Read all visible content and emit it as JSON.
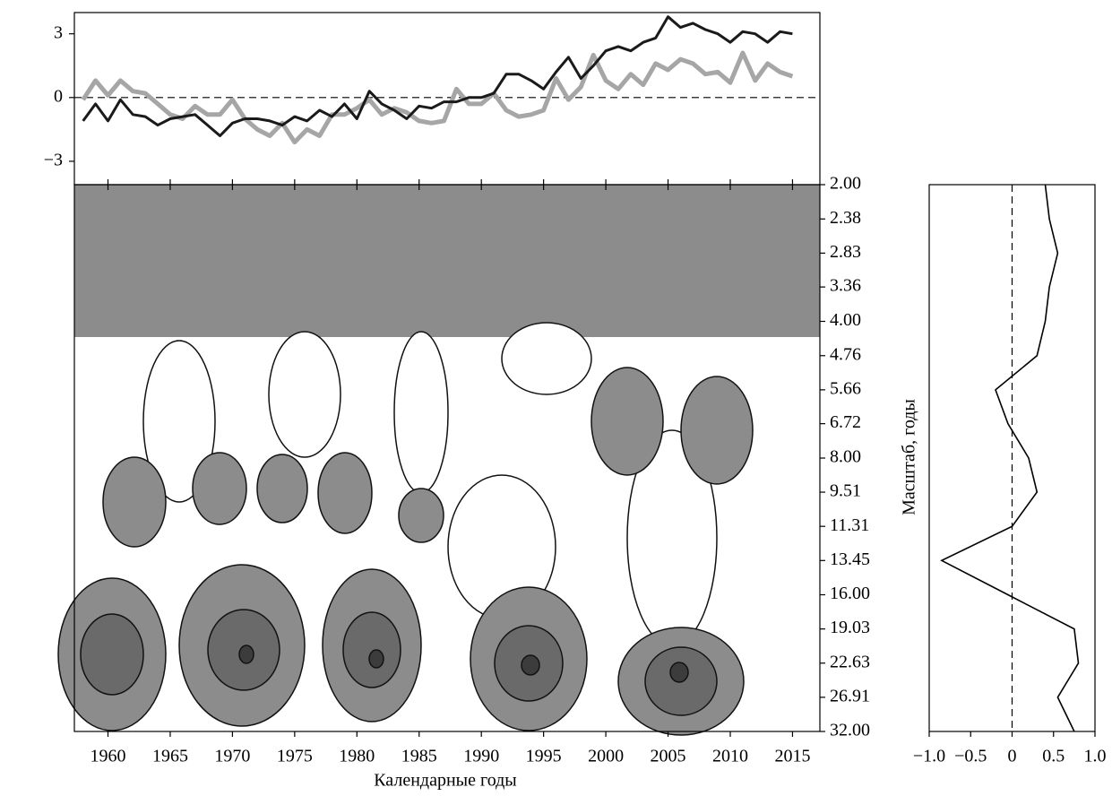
{
  "chart_data": [
    {
      "type": "line",
      "x": [
        1958,
        1959,
        1960,
        1961,
        1962,
        1963,
        1964,
        1965,
        1966,
        1967,
        1968,
        1969,
        1970,
        1971,
        1972,
        1973,
        1974,
        1975,
        1976,
        1977,
        1978,
        1979,
        1980,
        1981,
        1982,
        1983,
        1984,
        1985,
        1986,
        1987,
        1988,
        1989,
        1990,
        1991,
        1992,
        1993,
        1994,
        1995,
        1996,
        1997,
        1998,
        1999,
        2000,
        2001,
        2002,
        2003,
        2004,
        2005,
        2006,
        2007,
        2008,
        2009,
        2010,
        2011,
        2012,
        2013,
        2014,
        2015
      ],
      "series": [
        {
          "color": "#1a1a1a",
          "values": [
            -1.1,
            -0.3,
            -1.1,
            -0.1,
            -0.8,
            -0.9,
            -1.3,
            -1.0,
            -0.9,
            -0.8,
            -1.3,
            -1.8,
            -1.2,
            -1.0,
            -1.0,
            -1.1,
            -1.3,
            -0.9,
            -1.1,
            -0.6,
            -0.9,
            -0.3,
            -1.0,
            0.3,
            -0.3,
            -0.6,
            -1.0,
            -0.4,
            -0.5,
            -0.2,
            -0.2,
            0.0,
            0.0,
            0.2,
            1.1,
            1.1,
            0.8,
            0.4,
            1.2,
            1.9,
            0.9,
            1.5,
            2.2,
            2.4,
            2.2,
            2.6,
            2.8,
            3.8,
            3.3,
            3.5,
            3.2,
            3.0,
            2.6,
            3.1,
            3.0,
            2.6,
            3.1,
            3.0
          ]
        },
        {
          "color": "#a6a6a6",
          "values": [
            -0.1,
            0.8,
            0.1,
            0.8,
            0.3,
            0.2,
            -0.3,
            -0.8,
            -1.0,
            -0.4,
            -0.8,
            -0.8,
            -0.1,
            -1.0,
            -1.5,
            -1.8,
            -1.2,
            -2.1,
            -1.5,
            -1.8,
            -0.8,
            -0.8,
            -0.5,
            -0.1,
            -0.8,
            -0.5,
            -0.7,
            -1.1,
            -1.2,
            -1.1,
            0.4,
            -0.3,
            -0.3,
            0.2,
            -0.6,
            -0.9,
            -0.8,
            -0.6,
            0.9,
            -0.1,
            0.5,
            2.0,
            0.8,
            0.4,
            1.1,
            0.6,
            1.6,
            1.3,
            1.8,
            1.6,
            1.1,
            1.2,
            0.7,
            2.1,
            0.8,
            1.6,
            1.2,
            1.0
          ]
        }
      ],
      "xlim": [
        1957.3,
        2017.2
      ],
      "ylim": [
        -4.1,
        4.0
      ],
      "yticks": [
        3,
        0,
        {
          "value": -3,
          "label": "−3"
        }
      ]
    },
    {
      "type": "contour",
      "xlim": [
        1957.3,
        2017.2
      ],
      "xticks": [
        1960,
        1965,
        1970,
        1975,
        1980,
        1985,
        1990,
        1995,
        2000,
        2005,
        2010,
        2015
      ],
      "xlabel": "Календарные годы",
      "ylim": [
        2,
        32
      ],
      "log": true,
      "ylabel": "Масштаб, годы",
      "yticks": [
        {
          "value": 2,
          "label": "2.00"
        },
        {
          "value": 2.38,
          "label": "2.38"
        },
        {
          "value": 2.83,
          "label": "2.83"
        },
        {
          "value": 3.36,
          "label": "3.36"
        },
        {
          "value": 4,
          "label": "4.00"
        },
        {
          "value": 4.76,
          "label": "4.76"
        },
        {
          "value": 5.66,
          "label": "5.66"
        },
        {
          "value": 6.72,
          "label": "6.72"
        },
        {
          "value": 8,
          "label": "8.00"
        },
        {
          "value": 9.51,
          "label": "9.51"
        },
        {
          "value": 11.31,
          "label": "11.31"
        },
        {
          "value": 13.45,
          "label": "13.45"
        },
        {
          "value": 16,
          "label": "16.00"
        },
        {
          "value": 19.03,
          "label": "19.03"
        },
        {
          "value": 22.63,
          "label": "22.63"
        },
        {
          "value": 26.91,
          "label": "26.91"
        },
        {
          "value": 32,
          "label": "32.00"
        }
      ]
    },
    {
      "type": "profile",
      "y": [
        2,
        2.38,
        2.83,
        3.36,
        4,
        4.76,
        5.66,
        6.72,
        8,
        9.51,
        11.31,
        13.45,
        16,
        19.03,
        22.63,
        26.91,
        32
      ],
      "values": [
        0.4,
        0.45,
        0.55,
        0.45,
        0.4,
        0.3,
        -0.2,
        -0.05,
        0.2,
        0.3,
        0.0,
        -0.85,
        -0.05,
        0.75,
        0.8,
        0.55,
        0.75
      ],
      "color": "#000000",
      "ylim": [
        2,
        32
      ],
      "log": true,
      "xlim": [
        -1,
        1
      ],
      "xticks": [
        {
          "value": -1,
          "label": "−1.0"
        },
        {
          "value": -0.5,
          "label": "−0.5"
        },
        0,
        {
          "value": 0.5,
          "label": "0.5"
        },
        {
          "value": 1,
          "label": "1.0"
        }
      ]
    }
  ]
}
